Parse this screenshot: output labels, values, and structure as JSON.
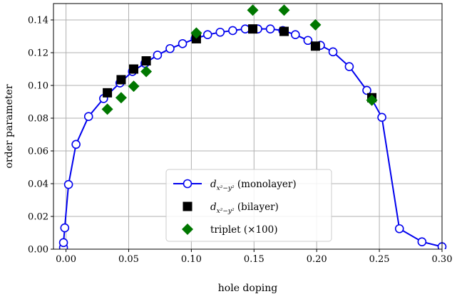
{
  "chart_data": {
    "type": "scatter",
    "xlabel": "hole doping",
    "ylabel": "order parameter",
    "xlim": [
      -0.01,
      0.3
    ],
    "ylim": [
      0.0,
      0.15
    ],
    "x_ticks": [
      "0.00",
      "0.05",
      "0.10",
      "0.15",
      "0.20",
      "0.25",
      "0.30"
    ],
    "y_ticks": [
      "0.00",
      "0.02",
      "0.04",
      "0.06",
      "0.08",
      "0.10",
      "0.12",
      "0.14"
    ],
    "grid": true,
    "legend_position": "bottom-center",
    "series": [
      {
        "name_main": "d",
        "name_sub": "x²−y²",
        "name_suffix": " (monolayer)",
        "marker": "open-circle-line",
        "color": "#0000ee",
        "points": [
          [
            -0.002,
            0.001
          ],
          [
            -0.002,
            0.004
          ],
          [
            -0.001,
            0.013
          ],
          [
            0.002,
            0.0395
          ],
          [
            0.008,
            0.064
          ],
          [
            0.018,
            0.081
          ],
          [
            0.03,
            0.092
          ],
          [
            0.043,
            0.1015
          ],
          [
            0.053,
            0.1085
          ],
          [
            0.063,
            0.1135
          ],
          [
            0.073,
            0.1185
          ],
          [
            0.083,
            0.1225
          ],
          [
            0.093,
            0.1255
          ],
          [
            0.103,
            0.1285
          ],
          [
            0.113,
            0.131
          ],
          [
            0.123,
            0.1325
          ],
          [
            0.133,
            0.1335
          ],
          [
            0.143,
            0.1345
          ],
          [
            0.153,
            0.1345
          ],
          [
            0.163,
            0.1345
          ],
          [
            0.173,
            0.1335
          ],
          [
            0.183,
            0.131
          ],
          [
            0.193,
            0.1275
          ],
          [
            0.203,
            0.1245
          ],
          [
            0.213,
            0.1205
          ],
          [
            0.226,
            0.1115
          ],
          [
            0.24,
            0.097
          ],
          [
            0.252,
            0.0805
          ],
          [
            0.266,
            0.0125
          ],
          [
            0.284,
            0.0045
          ],
          [
            0.3,
            0.0015
          ]
        ]
      },
      {
        "name_main": "d",
        "name_sub": "x²−y²",
        "name_suffix": " (bilayer)",
        "marker": "filled-square",
        "color": "#000000",
        "points": [
          [
            0.033,
            0.0955
          ],
          [
            0.044,
            0.1035
          ],
          [
            0.054,
            0.11
          ],
          [
            0.064,
            0.115
          ],
          [
            0.104,
            0.1285
          ],
          [
            0.149,
            0.1345
          ],
          [
            0.174,
            0.133
          ],
          [
            0.199,
            0.124
          ],
          [
            0.244,
            0.0925
          ]
        ]
      },
      {
        "name": "triplet (×100)",
        "marker": "filled-diamond",
        "color": "#007700",
        "points": [
          [
            0.033,
            0.0855
          ],
          [
            0.044,
            0.0925
          ],
          [
            0.054,
            0.0995
          ],
          [
            0.064,
            0.1085
          ],
          [
            0.104,
            0.132
          ],
          [
            0.149,
            0.146
          ],
          [
            0.174,
            0.146
          ],
          [
            0.199,
            0.137
          ],
          [
            0.244,
            0.091
          ]
        ]
      }
    ]
  }
}
